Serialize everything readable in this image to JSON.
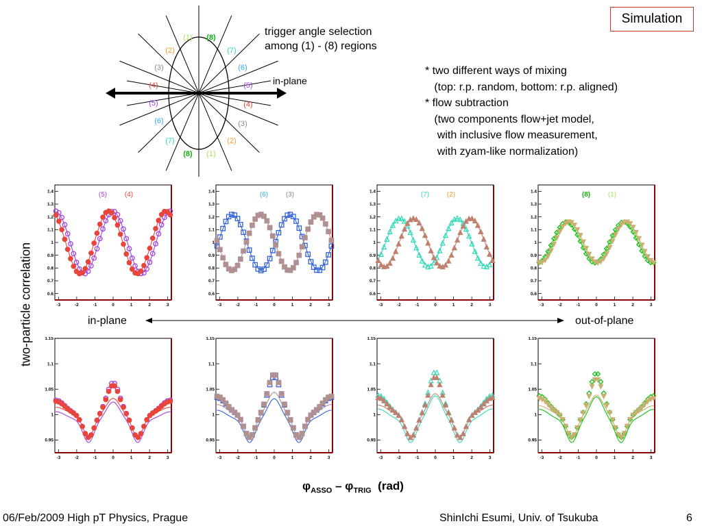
{
  "header": {
    "sim_label": "Simulation",
    "selection_note_1": "trigger angle selection",
    "selection_note_2": "among (1) - (8) regions",
    "inplane_label": "in-plane"
  },
  "notes": "* two different ways of mixing\n   (top: r.p. random, bottom: r.p. aligned)\n* flow subtraction\n   (two components flow+jet model,\n    with inclusive flow measurement,\n    with zyam-like normalization)",
  "regions": {
    "labels": [
      "(1)",
      "(2)",
      "(3)",
      "(4)",
      "(5)",
      "(6)",
      "(7)",
      "(8)"
    ],
    "colors": {
      "(1)": "#a6e35a",
      "(2)": "#f0a030",
      "(3)": "#888888",
      "(4)": "#e8453c",
      "(5)": "#a040e0",
      "(6)": "#30a8f0",
      "(7)": "#30d8b8",
      "(8)": "#10b010"
    }
  },
  "axis_labels": {
    "y": "two-particle correlation",
    "x_phi1": "φ",
    "x_sub1": "ASSO",
    "x_minus": " – ",
    "x_phi2": "φ",
    "x_sub2": "TRIG",
    "x_unit": "  (rad)"
  },
  "middle_arrow": {
    "left": "in-plane",
    "right": "out-of-plane"
  },
  "footer": {
    "left": "06/Feb/2009 High pT Physics, Prague",
    "right": "ShinIchi Esumi, Univ. of Tsukuba",
    "page": "6"
  },
  "chart_data": [
    {
      "type": "scatter",
      "row": "top",
      "xlim": [
        -3.2,
        3.2
      ],
      "ylim": [
        0.55,
        1.45
      ],
      "xticks": [
        "-3",
        "-2",
        "-1",
        "0",
        "1",
        "2",
        "3"
      ],
      "yticks": [
        "0.6",
        "0.7",
        "0.8",
        "0.9",
        "1",
        "1.1",
        "1.2",
        "1.3",
        "1.4"
      ],
      "legend": [
        "(5)",
        "(4)"
      ],
      "series": [
        {
          "name": "(5)",
          "color": "#a040e0",
          "marker": "open-circle",
          "amp": 0.245,
          "phase": 0.0
        },
        {
          "name": "(4)",
          "color": "#e8453c",
          "marker": "filled-circle",
          "amp": 0.245,
          "phase": -0.25
        }
      ]
    },
    {
      "type": "scatter",
      "row": "top",
      "xlim": [
        -3.2,
        3.2
      ],
      "ylim": [
        0.55,
        1.45
      ],
      "xticks": [
        "-3",
        "-2",
        "-1",
        "0",
        "1",
        "2",
        "3"
      ],
      "yticks": [
        "0.6",
        "0.7",
        "0.8",
        "0.9",
        "1",
        "1.1",
        "1.2",
        "1.3",
        "1.4"
      ],
      "legend": [
        "(6)",
        "(3)"
      ],
      "series": [
        {
          "name": "(6)",
          "color": "#3060d8",
          "marker": "open-square",
          "amp": 0.22,
          "phase": 0.85
        },
        {
          "name": "(3)",
          "color": "#b09090",
          "marker": "filled-square",
          "amp": 0.22,
          "phase": -0.75
        }
      ]
    },
    {
      "type": "scatter",
      "row": "top",
      "xlim": [
        -3.2,
        3.2
      ],
      "ylim": [
        0.55,
        1.45
      ],
      "xticks": [
        "-3",
        "-2",
        "-1",
        "0",
        "1",
        "2",
        "3"
      ],
      "yticks": [
        "0.6",
        "0.7",
        "0.8",
        "0.9",
        "1",
        "1.1",
        "1.2",
        "1.3",
        "1.4"
      ],
      "legend": [
        "(7)",
        "(2)"
      ],
      "series": [
        {
          "name": "(7)",
          "color": "#30d8b8",
          "marker": "open-triangle",
          "amp": 0.19,
          "phase": 1.2
        },
        {
          "name": "(2)",
          "color": "#c08070",
          "marker": "filled-triangle",
          "amp": 0.19,
          "phase": -1.2
        }
      ]
    },
    {
      "type": "scatter",
      "row": "top",
      "xlim": [
        -3.2,
        3.2
      ],
      "ylim": [
        0.55,
        1.45
      ],
      "xticks": [
        "-3",
        "-2",
        "-1",
        "0",
        "1",
        "2",
        "3"
      ],
      "yticks": [
        "0.6",
        "0.7",
        "0.8",
        "0.9",
        "1",
        "1.1",
        "1.2",
        "1.3",
        "1.4"
      ],
      "legend": [
        "(8)",
        "(1)"
      ],
      "series": [
        {
          "name": "(8)",
          "color": "#10c010",
          "marker": "open-diamond",
          "amp": 0.16,
          "phase": 1.5
        },
        {
          "name": "(1)",
          "color": "#c8b070",
          "marker": "filled-triangle-down",
          "amp": 0.16,
          "phase": -1.5
        }
      ]
    },
    {
      "type": "scatter",
      "row": "bottom",
      "xlim": [
        -3.2,
        3.2
      ],
      "ylim": [
        0.925,
        1.15
      ],
      "xticks": [
        "-3",
        "-2",
        "-1",
        "0",
        "1",
        "2",
        "3"
      ],
      "yticks": [
        "0.95",
        "1",
        "1.05",
        "1.1",
        "1.15"
      ],
      "series": [
        {
          "name": "(5)",
          "color": "#a040e0",
          "marker": "open-circle",
          "peak": 0.063
        },
        {
          "name": "(4)",
          "color": "#e8453c",
          "marker": "filled-circle",
          "peak": 0.058
        }
      ]
    },
    {
      "type": "scatter",
      "row": "bottom",
      "xlim": [
        -3.2,
        3.2
      ],
      "ylim": [
        0.925,
        1.15
      ],
      "xticks": [
        "-3",
        "-2",
        "-1",
        "0",
        "1",
        "2",
        "3"
      ],
      "yticks": [
        "0.95",
        "1",
        "1.05",
        "1.1",
        "1.15"
      ],
      "series": [
        {
          "name": "(6)",
          "color": "#3060d8",
          "marker": "open-square",
          "peak": 0.075
        },
        {
          "name": "(3)",
          "color": "#b09090",
          "marker": "filled-square",
          "peak": 0.08
        }
      ]
    },
    {
      "type": "scatter",
      "row": "bottom",
      "xlim": [
        -3.2,
        3.2
      ],
      "ylim": [
        0.925,
        1.15
      ],
      "xticks": [
        "-3",
        "-2",
        "-1",
        "0",
        "1",
        "2",
        "3"
      ],
      "yticks": [
        "0.95",
        "1",
        "1.05",
        "1.1",
        "1.15"
      ],
      "series": [
        {
          "name": "(7)",
          "color": "#30d8b8",
          "marker": "open-triangle",
          "peak": 0.085
        },
        {
          "name": "(2)",
          "color": "#c08070",
          "marker": "filled-triangle",
          "peak": 0.075
        }
      ]
    },
    {
      "type": "scatter",
      "row": "bottom",
      "xlim": [
        -3.2,
        3.2
      ],
      "ylim": [
        0.925,
        1.15
      ],
      "xticks": [
        "-3",
        "-2",
        "-1",
        "0",
        "1",
        "2",
        "3"
      ],
      "yticks": [
        "0.95",
        "1",
        "1.05",
        "1.1",
        "1.15"
      ],
      "series": [
        {
          "name": "(8)",
          "color": "#10c010",
          "marker": "open-diamond",
          "peak": 0.082
        },
        {
          "name": "(1)",
          "color": "#c8b070",
          "marker": "filled-triangle-down",
          "peak": 0.07
        }
      ]
    }
  ]
}
